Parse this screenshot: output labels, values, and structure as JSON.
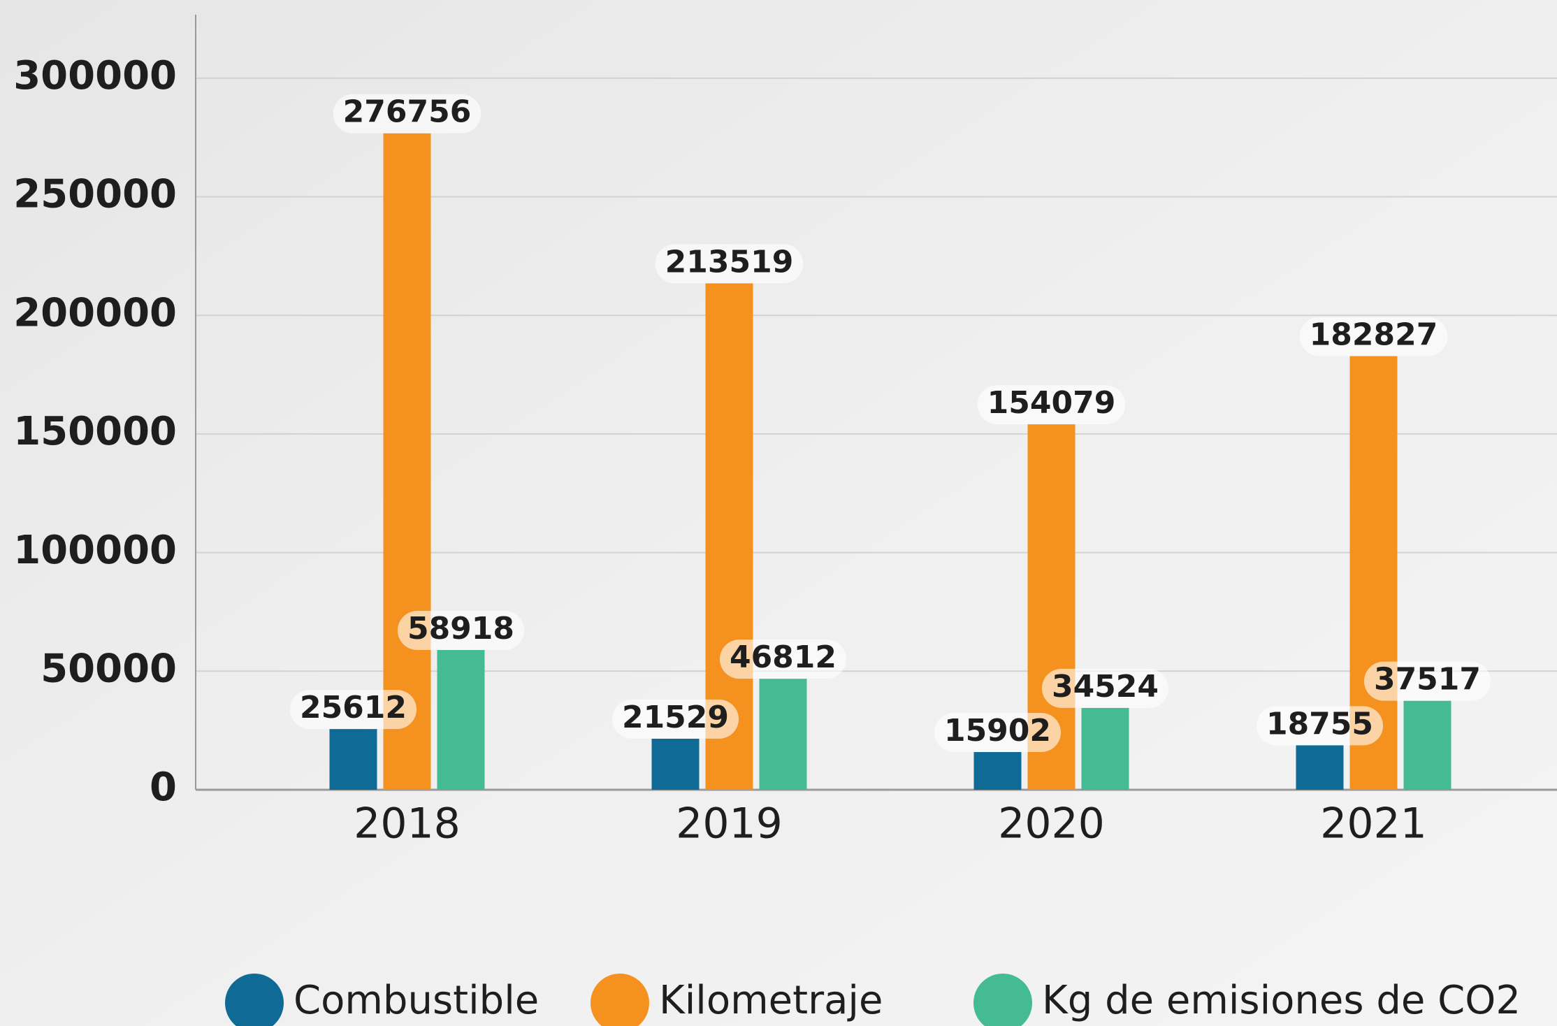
{
  "chart_data": {
    "type": "bar",
    "categories": [
      "2018",
      "2019",
      "2020",
      "2021"
    ],
    "series": [
      {
        "name": "Combustible",
        "color": "#0f6b96",
        "values": [
          25612,
          21529,
          15902,
          18755
        ]
      },
      {
        "name": "Kilometraje",
        "color": "#f5921f",
        "values": [
          276756,
          213519,
          154079,
          182827
        ]
      },
      {
        "name": "Kg de emisiones de CO2",
        "color": "#45bb93",
        "values": [
          58918,
          46812,
          34524,
          37517
        ]
      }
    ],
    "ylim": [
      0,
      325000
    ],
    "yticks": [
      0,
      50000,
      100000,
      150000,
      200000,
      250000,
      300000
    ],
    "grid": true,
    "legend": "bottom"
  }
}
